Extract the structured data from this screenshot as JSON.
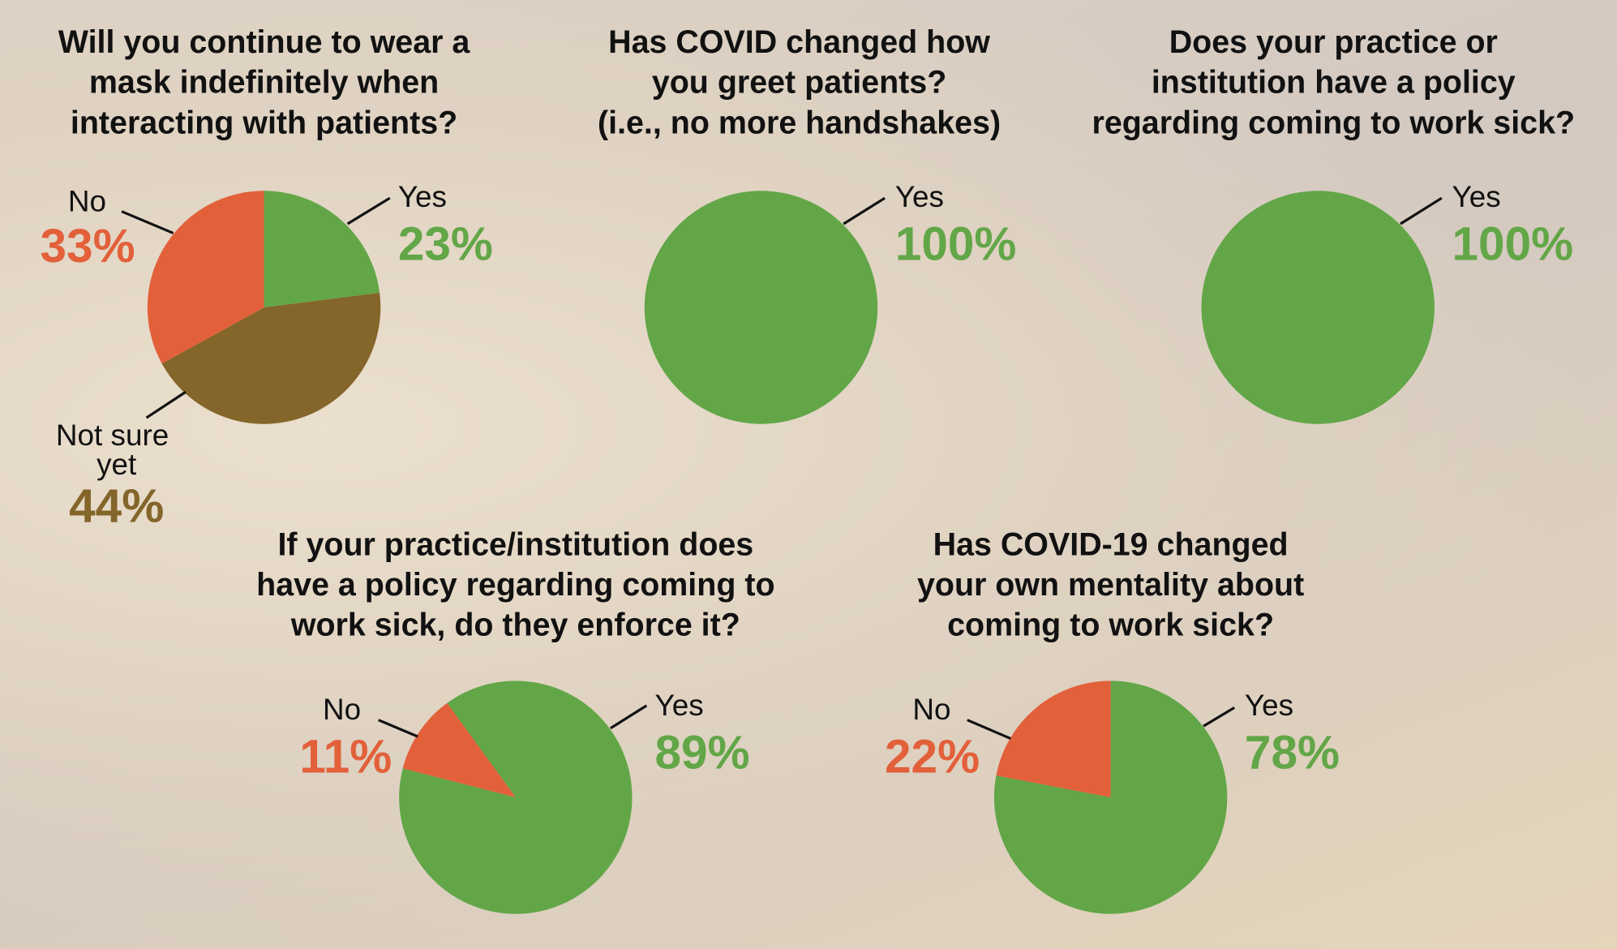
{
  "chart_data": [
    {
      "type": "pie",
      "title": [
        "Will you continue to wear a",
        "mask indefinitely when",
        "interacting with patients?"
      ],
      "categories": [
        "Yes",
        "Not sure yet",
        "No"
      ],
      "values": [
        23,
        44,
        33
      ],
      "value_labels": [
        "23%",
        "44%",
        "33%"
      ],
      "colors": [
        "#62a648",
        "#84652a",
        "#e2603a"
      ]
    },
    {
      "type": "pie",
      "title": [
        "Has COVID changed how",
        "you greet patients?",
        "(i.e., no more handshakes)"
      ],
      "categories": [
        "Yes"
      ],
      "values": [
        100
      ],
      "value_labels": [
        "100%"
      ],
      "colors": [
        "#62a648"
      ]
    },
    {
      "type": "pie",
      "title": [
        "Does your practice or",
        "institution have a policy",
        "regarding coming to work sick?"
      ],
      "categories": [
        "Yes"
      ],
      "values": [
        100
      ],
      "value_labels": [
        "100%"
      ],
      "colors": [
        "#62a648"
      ]
    },
    {
      "type": "pie",
      "title": [
        "If your practice/institution does",
        "have a policy regarding coming to",
        "work sick, do they enforce it?"
      ],
      "categories": [
        "Yes",
        "No"
      ],
      "values": [
        89,
        11
      ],
      "value_labels": [
        "89%",
        "11%"
      ],
      "colors": [
        "#62a648",
        "#e2603a"
      ]
    },
    {
      "type": "pie",
      "title": [
        "Has COVID-19 changed",
        "your own mentality about",
        "coming to work sick?"
      ],
      "categories": [
        "Yes",
        "No"
      ],
      "values": [
        78,
        22
      ],
      "value_labels": [
        "78%",
        "22%"
      ],
      "colors": [
        "#62a648",
        "#e2603a"
      ]
    }
  ]
}
